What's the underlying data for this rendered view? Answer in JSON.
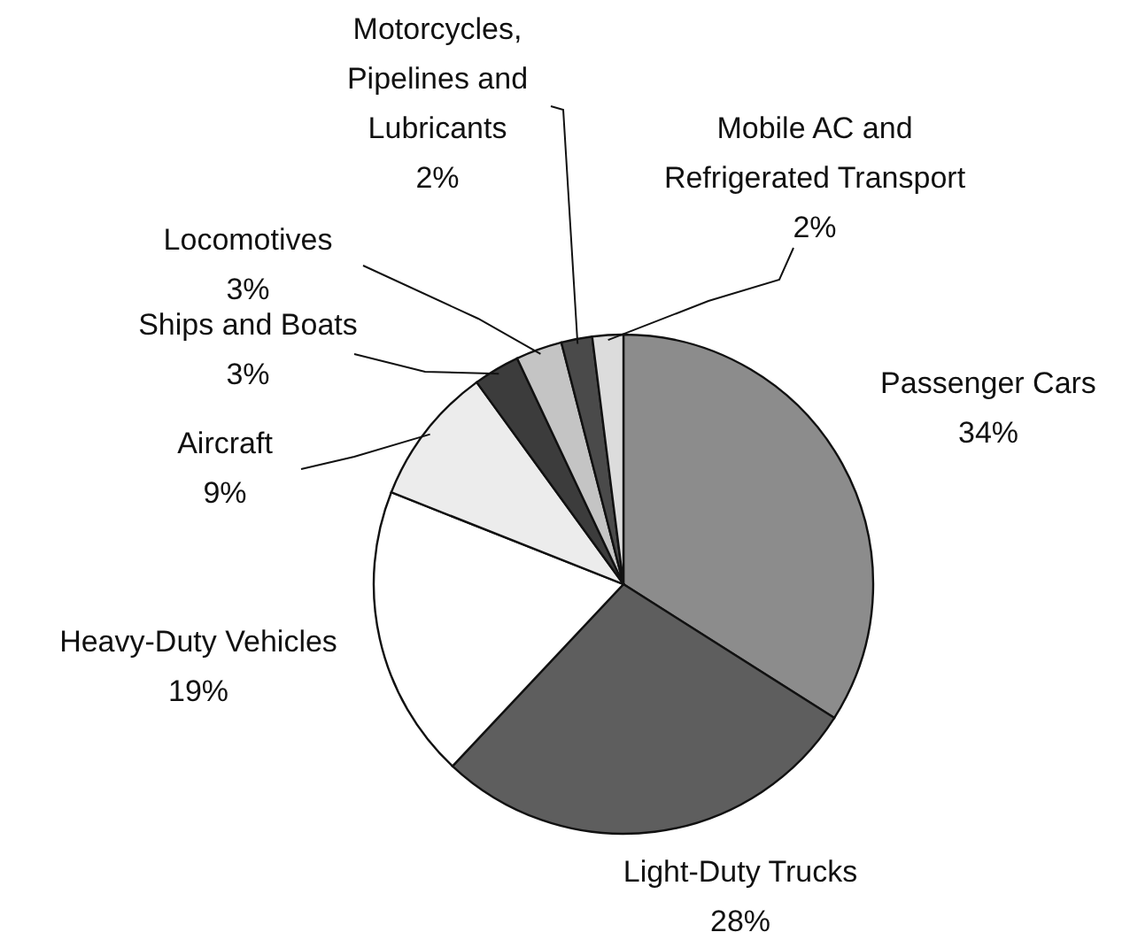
{
  "chart_data": {
    "type": "pie",
    "categories": [
      "Passenger Cars",
      "Light-Duty Trucks",
      "Heavy-Duty Vehicles",
      "Aircraft",
      "Ships and Boats",
      "Locomotives",
      "Motorcycles, Pipelines and Lubricants",
      "Mobile AC and Refrigerated Transport"
    ],
    "values": [
      34,
      28,
      19,
      9,
      3,
      3,
      2,
      2
    ],
    "value_labels": [
      "34%",
      "28%",
      "19%",
      "9%",
      "3%",
      "3%",
      "2%",
      "2%"
    ],
    "colors": [
      "#8c8c8c",
      "#5e5e5e",
      "#ffffff",
      "#ececec",
      "#3c3c3c",
      "#c4c4c4",
      "#4a4a4a",
      "#dcdcdc"
    ]
  }
}
